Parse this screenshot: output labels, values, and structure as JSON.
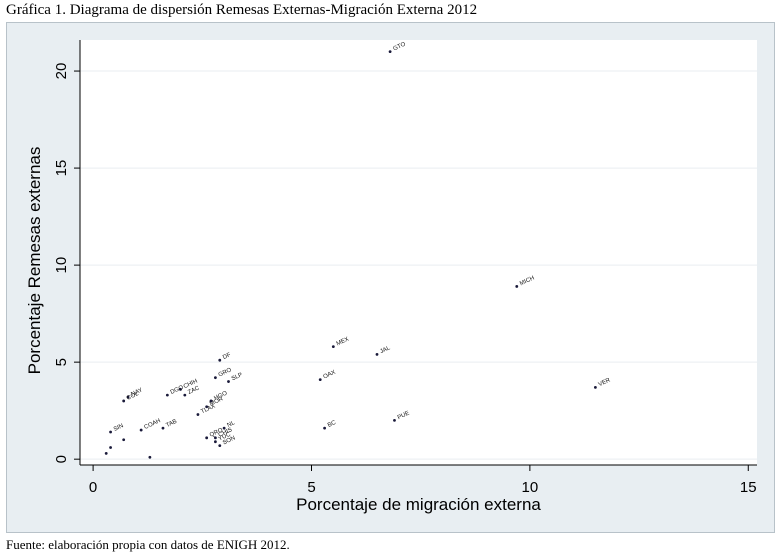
{
  "header": {
    "title": "Gráfica 1. Diagrama de dispersión Remesas Externas-Migración Externa 2012"
  },
  "footer": {
    "source": "Fuente: elaboración propia con datos de ENIGH 2012."
  },
  "colors": {
    "plot_background": "#ffffff",
    "frame_background": "#e8eef2",
    "gridline": "#e9eef1",
    "marker": "#1a1a3a"
  },
  "chart_data": {
    "type": "scatter",
    "title": "",
    "xlabel": "Porcentaje de migración externa",
    "ylabel": "Porcentaje Remesas externas",
    "xlim": [
      -0.3,
      15.2
    ],
    "ylim": [
      -0.3,
      21.6
    ],
    "xticks": [
      0,
      5,
      10,
      15
    ],
    "yticks": [
      0,
      5,
      10,
      15,
      20
    ],
    "grid": "horizontal",
    "points": [
      {
        "label": "GTO",
        "x": 6.8,
        "y": 21.0
      },
      {
        "label": "MICH",
        "x": 9.7,
        "y": 8.9
      },
      {
        "label": "VER",
        "x": 11.5,
        "y": 3.7
      },
      {
        "label": "MEX",
        "x": 5.5,
        "y": 5.8
      },
      {
        "label": "JAL",
        "x": 6.5,
        "y": 5.4
      },
      {
        "label": "OAX",
        "x": 5.2,
        "y": 4.1
      },
      {
        "label": "PUE",
        "x": 6.9,
        "y": 2.0
      },
      {
        "label": "BC",
        "x": 5.3,
        "y": 1.6
      },
      {
        "label": "DF",
        "x": 2.9,
        "y": 5.1
      },
      {
        "label": "GRO",
        "x": 2.8,
        "y": 4.2
      },
      {
        "label": "SLP",
        "x": 3.1,
        "y": 4.0
      },
      {
        "label": "CHIH",
        "x": 2.0,
        "y": 3.6
      },
      {
        "label": "ZAC",
        "x": 2.1,
        "y": 3.3
      },
      {
        "label": "DGO",
        "x": 1.7,
        "y": 3.3
      },
      {
        "label": "NAY",
        "x": 0.8,
        "y": 3.2
      },
      {
        "label": "COL",
        "x": 0.7,
        "y": 3.0
      },
      {
        "label": "HGO",
        "x": 2.7,
        "y": 3.0
      },
      {
        "label": "MOR",
        "x": 2.6,
        "y": 2.7
      },
      {
        "label": "TLAX",
        "x": 2.4,
        "y": 2.3
      },
      {
        "label": "COAH",
        "x": 1.1,
        "y": 1.5
      },
      {
        "label": "TAB",
        "x": 1.6,
        "y": 1.6
      },
      {
        "label": "NL",
        "x": 3.0,
        "y": 1.6
      },
      {
        "label": "QRO",
        "x": 2.6,
        "y": 1.1
      },
      {
        "label": "CHIS",
        "x": 2.8,
        "y": 1.1
      },
      {
        "label": "SIN",
        "x": 0.4,
        "y": 1.4
      },
      {
        "label": "YUC",
        "x": 2.8,
        "y": 0.9
      },
      {
        "label": "SON",
        "x": 2.9,
        "y": 0.7
      },
      {
        "label": "",
        "x": 1.3,
        "y": 0.1
      },
      {
        "label": "",
        "x": 0.7,
        "y": 1.0
      },
      {
        "label": "",
        "x": 0.4,
        "y": 0.6
      },
      {
        "label": "",
        "x": 0.3,
        "y": 0.3
      }
    ]
  }
}
